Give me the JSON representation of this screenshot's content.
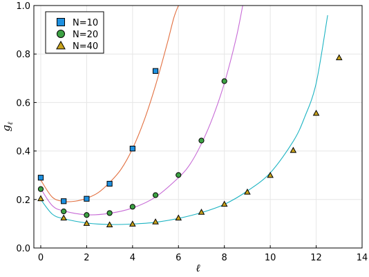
{
  "chart_data": {
    "type": "scatter",
    "xlabel": "ℓ",
    "ylabel": "g",
    "ylabel_sub": "ℓ",
    "xlim": [
      -0.3,
      14
    ],
    "ylim": [
      0,
      1
    ],
    "xticks": [
      0,
      2,
      4,
      6,
      8,
      10,
      12,
      14
    ],
    "yticks": [
      0.0,
      0.2,
      0.4,
      0.6,
      0.8,
      1.0
    ],
    "xtick_labels": [
      "0",
      "2",
      "4",
      "6",
      "8",
      "10",
      "12",
      "14"
    ],
    "ytick_labels": [
      "0.0",
      "0.2",
      "0.4",
      "0.6",
      "0.8",
      "1.0"
    ],
    "grid": true,
    "legend_position": "top-left",
    "series": [
      {
        "name": "N=10",
        "marker": "square",
        "color": "#1e90e0",
        "x": [
          0,
          1,
          2,
          3,
          4,
          5
        ],
        "y": [
          0.29,
          0.193,
          0.203,
          0.265,
          0.41,
          0.73
        ]
      },
      {
        "name": "N=20",
        "marker": "circle",
        "color": "#3da144",
        "x": [
          0,
          1,
          2,
          3,
          4,
          5,
          6,
          7,
          8
        ],
        "y": [
          0.243,
          0.151,
          0.136,
          0.144,
          0.17,
          0.218,
          0.301,
          0.443,
          0.688
        ]
      },
      {
        "name": "N=40",
        "marker": "triangle",
        "color": "#c8a21c",
        "x": [
          0,
          1,
          2,
          3,
          4,
          5,
          6,
          7,
          8,
          9,
          10,
          11,
          12,
          13
        ],
        "y": [
          0.204,
          0.124,
          0.102,
          0.096,
          0.099,
          0.108,
          0.124,
          0.148,
          0.181,
          0.231,
          0.3,
          0.403,
          0.556,
          0.785
        ]
      }
    ],
    "curves": [
      {
        "color": "#e26f3f",
        "x": [
          0,
          0.5,
          1,
          1.5,
          2,
          2.5,
          3,
          3.5,
          4,
          4.5,
          5,
          5.5,
          5.8,
          6.0
        ],
        "y": [
          0.28,
          0.21,
          0.192,
          0.193,
          0.205,
          0.228,
          0.27,
          0.325,
          0.41,
          0.525,
          0.67,
          0.84,
          0.95,
          1.0
        ]
      },
      {
        "color": "#c76bd6",
        "x": [
          0,
          0.5,
          1,
          2,
          3,
          4,
          5,
          6,
          6.5,
          7,
          7.5,
          8,
          8.5,
          8.8
        ],
        "y": [
          0.245,
          0.175,
          0.153,
          0.137,
          0.143,
          0.165,
          0.21,
          0.29,
          0.345,
          0.43,
          0.54,
          0.68,
          0.86,
          1.0
        ]
      },
      {
        "color": "#1bb3c2",
        "x": [
          0,
          0.5,
          1,
          2,
          3,
          4,
          5,
          6,
          7,
          8,
          9,
          10,
          11,
          11.5,
          12,
          12.5
        ],
        "y": [
          0.2,
          0.14,
          0.121,
          0.103,
          0.097,
          0.099,
          0.106,
          0.122,
          0.146,
          0.18,
          0.235,
          0.31,
          0.44,
          0.54,
          0.68,
          0.96
        ]
      }
    ]
  }
}
